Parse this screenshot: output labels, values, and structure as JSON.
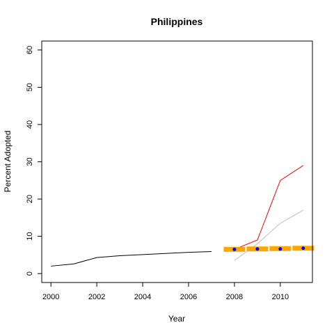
{
  "chart_data": {
    "type": "line",
    "title": "Philippines",
    "xlabel": "Year",
    "ylabel": "Percent Adopted",
    "xlim": [
      1999.6,
      2011.4
    ],
    "ylim": [
      -2.4,
      62.4
    ],
    "x_ticks": [
      2000,
      2002,
      2004,
      2006,
      2008,
      2010
    ],
    "y_ticks": [
      0,
      10,
      20,
      30,
      40,
      50,
      60
    ],
    "grid": false,
    "series": [
      {
        "color": "#000000",
        "style": "line",
        "x": [
          2000,
          2001,
          2002,
          2003,
          2004,
          2005,
          2006,
          2007
        ],
        "y": [
          2.0,
          2.6,
          4.3,
          4.8,
          5.1,
          5.4,
          5.7,
          5.9
        ]
      },
      {
        "color": "#ff0000",
        "style": "line",
        "x": [
          2008,
          2009,
          2010,
          2011
        ],
        "y": [
          6.5,
          9.0,
          25.0,
          29.0
        ]
      },
      {
        "color": "#bebebe",
        "style": "line",
        "x": [
          2008,
          2009,
          2010,
          2011
        ],
        "y": [
          3.5,
          8.0,
          13.5,
          17.0
        ]
      },
      {
        "color": "#ffa500",
        "style": "band",
        "x": [
          2008,
          2009,
          2010,
          2011
        ],
        "y": [
          6.5,
          6.6,
          6.7,
          6.8
        ]
      },
      {
        "color": "#0000ff",
        "style": "points",
        "x": [
          2008,
          2009,
          2010,
          2011
        ],
        "y": [
          6.5,
          6.6,
          6.6,
          6.8
        ]
      }
    ]
  }
}
